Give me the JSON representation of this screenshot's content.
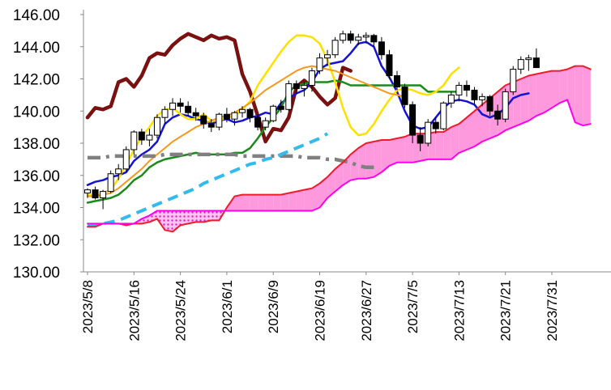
{
  "chart_data": {
    "type": "candlestick",
    "title": "",
    "xlabel": "",
    "ylabel": "",
    "ylim": [
      130,
      146
    ],
    "yticks": [
      "130.00",
      "132.00",
      "134.00",
      "136.00",
      "138.00",
      "140.00",
      "142.00",
      "144.00",
      "146.00"
    ],
    "xticks": [
      {
        "index": 0,
        "label": "2023/5/8"
      },
      {
        "index": 6,
        "label": "2023/5/16"
      },
      {
        "index": 12,
        "label": "2023/5/24"
      },
      {
        "index": 18,
        "label": "2023/6/1"
      },
      {
        "index": 24,
        "label": "2023/6/9"
      },
      {
        "index": 30,
        "label": "2023/6/19"
      },
      {
        "index": 36,
        "label": "2023/6/27"
      },
      {
        "index": 42,
        "label": "2023/7/5"
      },
      {
        "index": 48,
        "label": "2023/7/13"
      },
      {
        "index": 54,
        "label": "2023/7/21"
      },
      {
        "index": 60,
        "label": "2023/7/31"
      }
    ],
    "grid": {
      "y": false,
      "x": false
    },
    "legend": "none",
    "x_count": 73,
    "candles": [
      [
        134.9,
        135.2,
        134.6,
        135.1
      ],
      [
        135.1,
        135.3,
        134.5,
        134.6
      ],
      [
        134.6,
        135.1,
        133.9,
        135.0
      ],
      [
        135.0,
        136.3,
        134.9,
        136.1
      ],
      [
        136.1,
        136.7,
        135.7,
        136.4
      ],
      [
        136.4,
        137.8,
        136.2,
        137.6
      ],
      [
        137.6,
        138.8,
        137.3,
        138.7
      ],
      [
        138.7,
        138.9,
        137.9,
        138.2
      ],
      [
        138.2,
        138.9,
        137.8,
        138.5
      ],
      [
        138.5,
        139.8,
        138.3,
        139.6
      ],
      [
        139.6,
        140.3,
        139.2,
        140.1
      ],
      [
        140.1,
        140.8,
        139.7,
        140.5
      ],
      [
        140.5,
        140.8,
        139.9,
        140.3
      ],
      [
        140.3,
        140.6,
        139.7,
        139.9
      ],
      [
        139.9,
        140.2,
        139.4,
        139.7
      ],
      [
        139.7,
        139.9,
        138.9,
        139.2
      ],
      [
        139.2,
        139.5,
        138.7,
        139.0
      ],
      [
        139.0,
        139.9,
        138.8,
        139.8
      ],
      [
        139.8,
        140.2,
        139.3,
        139.5
      ],
      [
        139.5,
        140.0,
        139.1,
        139.9
      ],
      [
        139.9,
        140.3,
        139.6,
        140.1
      ],
      [
        140.1,
        140.2,
        139.3,
        139.6
      ],
      [
        139.6,
        139.8,
        138.8,
        139.0
      ],
      [
        139.0,
        139.6,
        138.8,
        139.4
      ],
      [
        139.4,
        140.4,
        139.3,
        140.3
      ],
      [
        140.3,
        140.7,
        139.9,
        140.1
      ],
      [
        140.1,
        141.9,
        140.0,
        141.7
      ],
      [
        141.7,
        141.9,
        141.1,
        141.4
      ],
      [
        141.4,
        141.8,
        140.9,
        141.6
      ],
      [
        141.6,
        142.7,
        141.2,
        142.5
      ],
      [
        142.5,
        143.6,
        142.3,
        143.3
      ],
      [
        143.3,
        143.8,
        142.8,
        143.5
      ],
      [
        143.5,
        144.6,
        143.3,
        144.4
      ],
      [
        144.4,
        145.0,
        144.2,
        144.8
      ],
      [
        144.8,
        145.0,
        144.2,
        144.4
      ],
      [
        144.4,
        144.8,
        144.1,
        144.6
      ],
      [
        144.6,
        144.9,
        144.2,
        144.7
      ],
      [
        144.7,
        144.8,
        144.0,
        144.3
      ],
      [
        144.3,
        144.6,
        143.2,
        143.5
      ],
      [
        143.5,
        143.8,
        142.0,
        142.2
      ],
      [
        142.2,
        142.5,
        141.3,
        141.5
      ],
      [
        141.5,
        141.7,
        140.2,
        140.4
      ],
      [
        140.4,
        140.6,
        138.0,
        138.5
      ],
      [
        138.5,
        139.0,
        137.5,
        138.0
      ],
      [
        138.0,
        139.5,
        137.8,
        139.3
      ],
      [
        139.3,
        139.6,
        138.6,
        138.9
      ],
      [
        138.9,
        140.6,
        138.8,
        140.5
      ],
      [
        140.5,
        141.2,
        140.2,
        141.0
      ],
      [
        141.0,
        141.8,
        140.6,
        141.6
      ],
      [
        141.6,
        141.9,
        140.9,
        141.3
      ],
      [
        141.3,
        141.5,
        140.4,
        140.7
      ],
      [
        140.7,
        141.1,
        140.3,
        140.9
      ],
      [
        140.9,
        141.0,
        139.7,
        140.0
      ],
      [
        140.0,
        140.4,
        139.1,
        139.5
      ],
      [
        139.5,
        141.4,
        139.3,
        141.2
      ],
      [
        141.2,
        142.8,
        141.0,
        142.6
      ],
      [
        142.6,
        143.4,
        142.3,
        143.2
      ],
      [
        143.2,
        143.5,
        142.5,
        143.3
      ],
      [
        143.3,
        143.9,
        142.8,
        142.7
      ]
    ],
    "series": [
      {
        "color": "#7a1010",
        "dash": "solid",
        "width": 4.5,
        "offset": 0,
        "values": [
          139.6,
          140.2,
          140.1,
          140.3,
          141.8,
          142.0,
          141.5,
          142.2,
          143.3,
          143.6,
          143.5,
          144.1,
          144.5,
          144.8,
          144.6,
          144.4,
          144.7,
          144.5,
          144.6,
          144.4,
          142.3,
          141.2,
          139.7,
          138.1,
          138.9,
          138.8,
          139.6,
          141.5,
          141.9,
          141.5,
          140.9,
          140.4,
          140.8,
          142.7,
          142.5
        ]
      },
      {
        "color": "#1414d2",
        "dash": "solid",
        "width": 2.5,
        "offset": 0,
        "values": [
          135.4,
          135.6,
          135.7,
          135.9,
          136.0,
          136.2,
          136.9,
          137.3,
          137.6,
          138.1,
          139.2,
          139.6,
          139.8,
          139.7,
          139.5,
          139.4,
          139.2,
          139.4,
          139.5,
          139.3,
          139.4,
          139.6,
          139.7,
          139.9,
          139.8,
          140.5,
          140.8,
          141.1,
          141.3,
          141.8,
          142.6,
          142.9,
          143.0,
          143.1,
          143.6,
          144.2,
          144.3,
          144.0,
          142.8,
          142.1,
          141.2,
          140.0,
          139.1,
          138.9,
          139.0,
          139.6,
          140.2,
          140.6,
          140.7,
          140.6,
          140.4,
          139.8,
          139.6,
          139.8,
          140.2,
          140.8,
          141.0,
          141.1
        ]
      },
      {
        "color": "#1a8a1a",
        "dash": "solid",
        "width": 2.5,
        "offset": 0,
        "values": [
          134.3,
          134.4,
          134.5,
          134.6,
          134.8,
          135.2,
          135.7,
          136.0,
          136.5,
          136.8,
          137.0,
          137.1,
          137.2,
          137.3,
          137.4,
          137.3,
          137.3,
          137.3,
          137.3,
          137.4,
          137.4,
          137.7,
          138.3,
          139.0,
          139.6,
          140.2,
          141.2,
          141.6,
          141.7,
          141.8,
          141.8,
          141.8,
          141.9,
          141.8,
          141.6,
          141.6,
          141.6,
          141.6,
          141.6,
          141.6,
          141.6,
          141.6,
          141.6,
          141.6,
          141.2,
          141.2,
          141.2,
          141.2,
          141.2
        ]
      },
      {
        "color": "#ffe000",
        "dash": "solid",
        "width": 2.5,
        "offset": 0,
        "values": [
          134.8,
          134.7,
          134.9,
          135.1,
          135.8,
          136.7,
          137.6,
          138.4,
          139.0,
          139.7,
          140.1,
          140.2,
          139.8,
          139.5,
          139.5,
          139.8,
          139.4,
          139.4,
          139.6,
          139.7,
          140.1,
          140.6,
          141.6,
          142.3,
          143.0,
          143.7,
          144.3,
          144.7,
          144.7,
          144.6,
          144.2,
          143.2,
          141.8,
          140.2,
          139.0,
          138.5,
          138.6,
          139.2,
          140.0,
          140.7,
          141.3,
          141.4,
          141.3,
          141.1,
          141.0,
          141.2,
          141.6,
          142.3,
          142.7
        ]
      },
      {
        "color": "#f29a1e",
        "dash": "solid",
        "width": 2.0,
        "offset": 0,
        "values": [
          134.7,
          134.7,
          134.8,
          134.9,
          135.2,
          135.6,
          136.0,
          136.4,
          136.9,
          137.3,
          137.7,
          138.1,
          138.4,
          138.7,
          139.0,
          139.2,
          139.4,
          139.6,
          139.7,
          139.9,
          140.2,
          140.5,
          140.9,
          141.3,
          141.6,
          141.9,
          142.2,
          142.5,
          142.7,
          142.8,
          142.7,
          142.6,
          142.5,
          142.3,
          142.1,
          141.9,
          141.7,
          141.5,
          141.3,
          141.1,
          141.0,
          140.9
        ]
      },
      {
        "color": "#808080",
        "dash": "16,7,4,7",
        "width": 4.5,
        "offset": 0,
        "values": [
          137.1,
          137.1,
          137.1,
          137.2,
          137.2,
          137.2,
          137.2,
          137.2,
          137.2,
          137.2,
          137.3,
          137.3,
          137.3,
          137.3,
          137.3,
          137.3,
          137.3,
          137.3,
          137.3,
          137.3,
          137.2,
          137.2,
          137.2,
          137.2,
          137.2,
          137.2,
          137.2,
          137.2,
          137.1,
          137.1,
          137.1,
          137.0,
          137.0,
          136.9,
          136.8,
          136.6,
          136.5,
          136.5
        ]
      },
      {
        "color": "#33bbee",
        "dash": "13,8",
        "width": 4.0,
        "offset": 0,
        "values": [
          132.9,
          132.9,
          133.0,
          133.1,
          133.2,
          133.4,
          133.6,
          133.8,
          134.0,
          134.2,
          134.4,
          134.6,
          134.8,
          135.0,
          135.2,
          135.5,
          135.7,
          135.9,
          136.1,
          136.3,
          136.5,
          136.7,
          136.8,
          137.0,
          137.1,
          137.3,
          137.5,
          137.7,
          137.9,
          138.1,
          138.3,
          138.6
        ]
      },
      {
        "color": "#ee1c2c",
        "dash": "solid",
        "width": 2.0,
        "offset": 0,
        "values": [
          132.8,
          132.8,
          133.0,
          133.0,
          133.0,
          132.9,
          133.0,
          133.0,
          133.1,
          133.3,
          132.6,
          132.5,
          132.9,
          133.0,
          133.1,
          133.1,
          133.2,
          133.2,
          134.0,
          134.7,
          134.8,
          134.8,
          134.8,
          134.8,
          134.8,
          134.8,
          134.9,
          135.0,
          135.1,
          135.2,
          135.5,
          135.9,
          136.4,
          136.8,
          137.3,
          137.7,
          138.0,
          138.1,
          138.2,
          138.2,
          138.3,
          138.4,
          138.6,
          138.6,
          138.6,
          138.7,
          138.7,
          139.0,
          139.2,
          139.6,
          140.0,
          140.4,
          140.8,
          141.2,
          141.6,
          141.8,
          142.0,
          142.2,
          142.3,
          142.4,
          142.5,
          142.5,
          142.6,
          142.8,
          142.8,
          142.6
        ]
      },
      {
        "color": "#ff00ee",
        "dash": "solid",
        "width": 2.0,
        "offset": 0,
        "values": [
          133.0,
          133.0,
          133.0,
          133.0,
          133.0,
          133.0,
          133.0,
          133.3,
          133.5,
          133.8,
          133.8,
          133.8,
          133.8,
          133.8,
          133.8,
          133.8,
          133.8,
          133.8,
          133.8,
          133.8,
          133.8,
          133.8,
          133.8,
          133.8,
          133.8,
          133.8,
          133.8,
          133.8,
          133.8,
          133.8,
          134.0,
          134.6,
          135.0,
          135.4,
          135.7,
          135.8,
          135.8,
          135.9,
          136.2,
          136.6,
          136.8,
          136.8,
          136.8,
          136.9,
          137.0,
          137.0,
          137.0,
          137.0,
          137.4,
          137.6,
          137.8,
          138.1,
          138.3,
          138.5,
          138.8,
          139.0,
          139.2,
          139.4,
          139.7,
          139.9,
          140.2,
          140.5,
          140.7,
          139.3,
          139.1,
          139.2
        ]
      }
    ],
    "cloud": {
      "up_fill": "#ff99dd",
      "down_fill": "#ff77ff",
      "down_pattern": "dots"
    }
  }
}
